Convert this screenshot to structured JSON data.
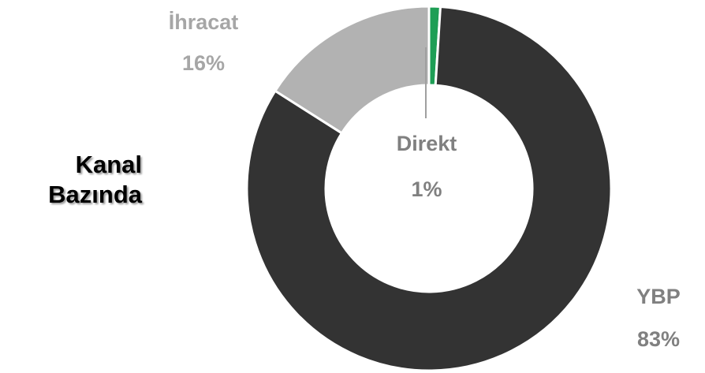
{
  "chart_data": {
    "type": "donut",
    "title": "Kanal Bazında",
    "categories": [
      "Direkt",
      "YBP",
      "İhracat"
    ],
    "values": [
      1,
      83,
      16
    ],
    "value_labels": [
      "1%",
      "83%",
      "16%"
    ],
    "colors": [
      "#1e9e55",
      "#333333",
      "#b2b2b2"
    ]
  }
}
